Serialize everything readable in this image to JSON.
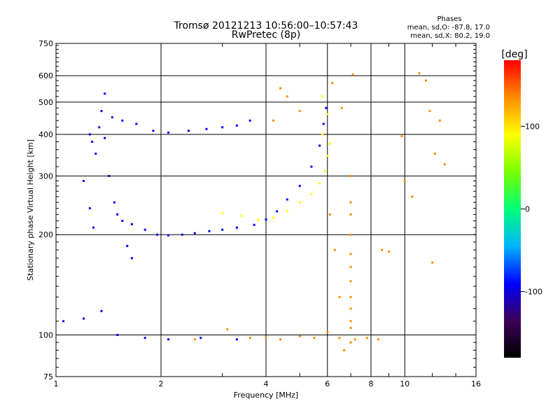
{
  "chart_data": {
    "type": "scatter",
    "title": "Tromsø 20121213 10:56:00–10:57:43",
    "subtitle": "RwPretec (8p)",
    "xlabel": "Frequency [MHz]",
    "ylabel": "Stationary phase Virtual Height [km]",
    "x_scale": "log",
    "y_scale": "log",
    "xlim": [
      1,
      16
    ],
    "ylim": [
      75,
      750
    ],
    "x_ticks": [
      1,
      2,
      4,
      6,
      8,
      10,
      16
    ],
    "y_ticks": [
      75,
      100,
      200,
      300,
      400,
      500,
      600,
      750
    ],
    "grid": true,
    "legend_position": "top-right",
    "legend": {
      "title": "Phases",
      "lines": [
        "mean, sd,O: -87.8, 17.0",
        "mean, sd,X:  80.2, 19.0"
      ]
    },
    "colorbar": {
      "label": "[deg]",
      "min": -180,
      "max": 180,
      "ticks": [
        100,
        0,
        -100
      ],
      "colormap": [
        "#000000",
        "#3c005a",
        "#0000ff",
        "#00b4ff",
        "#00ff78",
        "#78ff00",
        "#ffff00",
        "#ff8c00",
        "#ff0000"
      ]
    },
    "series": [
      {
        "points": [
          [
            1.25,
            400
          ],
          [
            1.27,
            380
          ],
          [
            1.3,
            350
          ],
          [
            1.33,
            420
          ],
          [
            1.38,
            390
          ],
          [
            1.42,
            300
          ],
          [
            1.47,
            250
          ],
          [
            1.5,
            230
          ],
          [
            1.55,
            220
          ],
          [
            1.65,
            215
          ],
          [
            1.8,
            207
          ],
          [
            1.95,
            200
          ],
          [
            2.1,
            199
          ],
          [
            2.3,
            200
          ],
          [
            2.5,
            202
          ],
          [
            2.75,
            205
          ],
          [
            3.0,
            207
          ],
          [
            3.3,
            210
          ],
          [
            3.7,
            214
          ],
          [
            4.0,
            222
          ],
          [
            4.3,
            235
          ],
          [
            4.6,
            255
          ],
          [
            5.0,
            280
          ],
          [
            5.4,
            320
          ],
          [
            5.7,
            370
          ],
          [
            5.85,
            430
          ],
          [
            5.95,
            480
          ],
          [
            1.45,
            450
          ],
          [
            1.55,
            440
          ],
          [
            1.7,
            430
          ],
          [
            1.9,
            410
          ],
          [
            2.1,
            405
          ],
          [
            2.4,
            410
          ],
          [
            2.7,
            415
          ],
          [
            3.0,
            420
          ],
          [
            3.3,
            425
          ],
          [
            3.6,
            440
          ],
          [
            1.35,
            470
          ],
          [
            1.38,
            530
          ],
          [
            1.2,
            290
          ],
          [
            1.25,
            240
          ],
          [
            1.28,
            210
          ],
          [
            1.05,
            110
          ],
          [
            1.2,
            112
          ],
          [
            1.35,
            118
          ],
          [
            1.5,
            100
          ],
          [
            1.8,
            98
          ],
          [
            2.1,
            97
          ],
          [
            2.6,
            98
          ],
          [
            3.3,
            97
          ],
          [
            1.6,
            185
          ],
          [
            1.65,
            170
          ]
        ],
        "phase": -95
      },
      {
        "points": [
          [
            3.0,
            232
          ],
          [
            3.4,
            228
          ],
          [
            3.8,
            222
          ],
          [
            4.2,
            225
          ],
          [
            4.6,
            235
          ],
          [
            5.0,
            250
          ],
          [
            5.4,
            265
          ],
          [
            5.7,
            285
          ],
          [
            5.9,
            310
          ],
          [
            6.0,
            345
          ],
          [
            6.1,
            375
          ],
          [
            5.8,
            400
          ],
          [
            6.0,
            460
          ],
          [
            5.8,
            520
          ]
        ],
        "phase": 110
      },
      {
        "points": [
          [
            2.5,
            97
          ],
          [
            3.1,
            104
          ],
          [
            3.6,
            98
          ],
          [
            4.0,
            99
          ],
          [
            4.4,
            97
          ],
          [
            5.0,
            99
          ],
          [
            5.5,
            98
          ],
          [
            6.0,
            102
          ],
          [
            6.5,
            98
          ],
          [
            7.2,
            97
          ],
          [
            7.8,
            98
          ],
          [
            8.4,
            97
          ],
          [
            4.2,
            440
          ],
          [
            4.4,
            550
          ],
          [
            4.6,
            520
          ],
          [
            5.0,
            470
          ],
          [
            6.1,
            230
          ],
          [
            6.3,
            180
          ],
          [
            6.5,
            130
          ],
          [
            6.7,
            90
          ]
        ],
        "phase": 120
      },
      {
        "points": [
          [
            6.6,
            480
          ],
          [
            7.0,
            300
          ],
          [
            7.0,
            250
          ],
          [
            7.0,
            230
          ],
          [
            7.0,
            200
          ],
          [
            7.0,
            175
          ],
          [
            7.0,
            160
          ],
          [
            7.0,
            145
          ],
          [
            7.0,
            130
          ],
          [
            7.0,
            120
          ],
          [
            7.0,
            110
          ],
          [
            7.0,
            105
          ],
          [
            7.0,
            95
          ],
          [
            6.2,
            570
          ],
          [
            7.1,
            605
          ],
          [
            10.0,
            290
          ],
          [
            10.5,
            260
          ],
          [
            11.0,
            610
          ],
          [
            11.5,
            580
          ],
          [
            11.8,
            470
          ],
          [
            12.2,
            350
          ],
          [
            12.6,
            440
          ],
          [
            13.0,
            325
          ],
          [
            8.6,
            180
          ],
          [
            9.0,
            178
          ],
          [
            9.8,
            395
          ],
          [
            12.0,
            165
          ]
        ],
        "phase": 150
      }
    ]
  }
}
